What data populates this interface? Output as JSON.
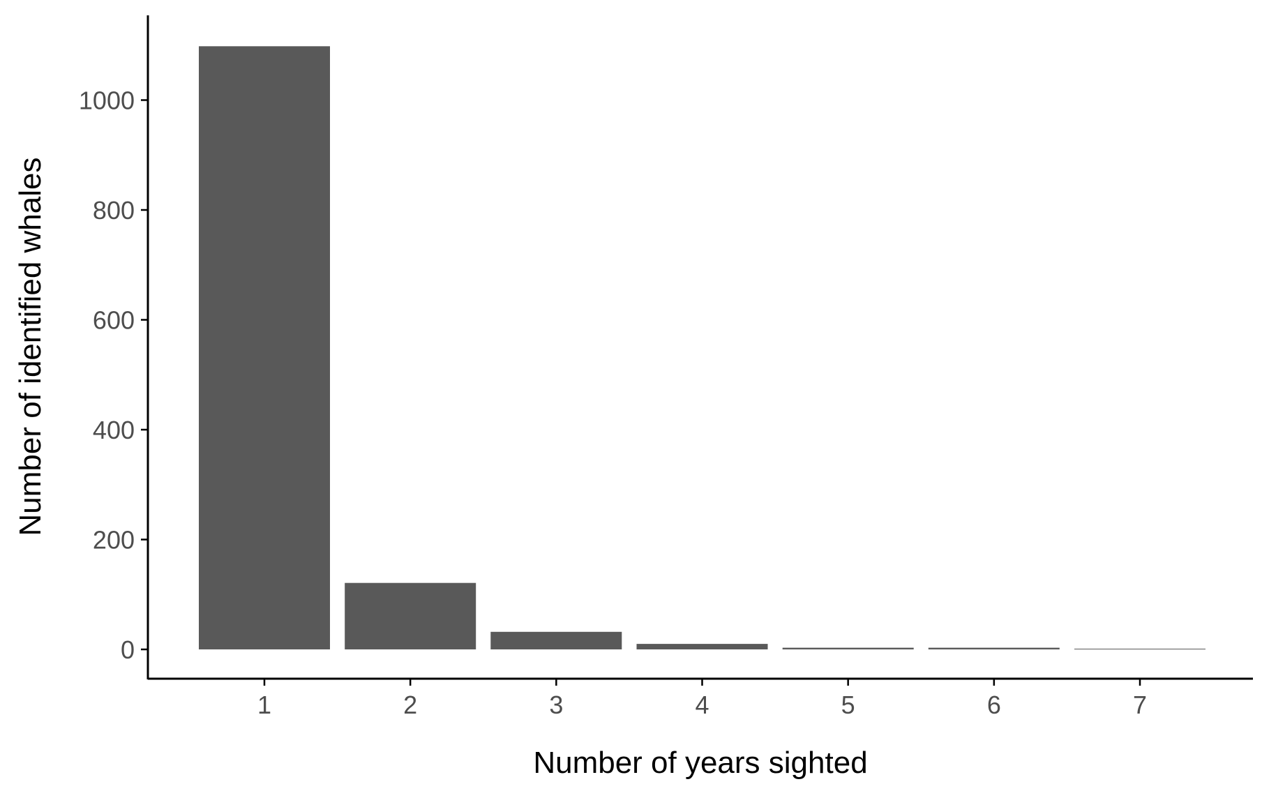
{
  "chart_data": {
    "type": "bar",
    "title": "",
    "xlabel": "Number of years sighted",
    "ylabel": "Number of identified whales",
    "categories": [
      "1",
      "2",
      "3",
      "4",
      "5",
      "6",
      "7"
    ],
    "values": [
      1098,
      121,
      32,
      10,
      3,
      3,
      1
    ],
    "ylim": [
      -55,
      1150
    ],
    "yticks": [
      0,
      200,
      400,
      600,
      800,
      1000
    ],
    "ytick_labels": [
      "0",
      "200",
      "400",
      "600",
      "800",
      "1000"
    ],
    "grid": false,
    "legend": "none",
    "bar_color": "#595959",
    "axis_color": "#000000",
    "tick_label_color": "#4d4d4d"
  }
}
